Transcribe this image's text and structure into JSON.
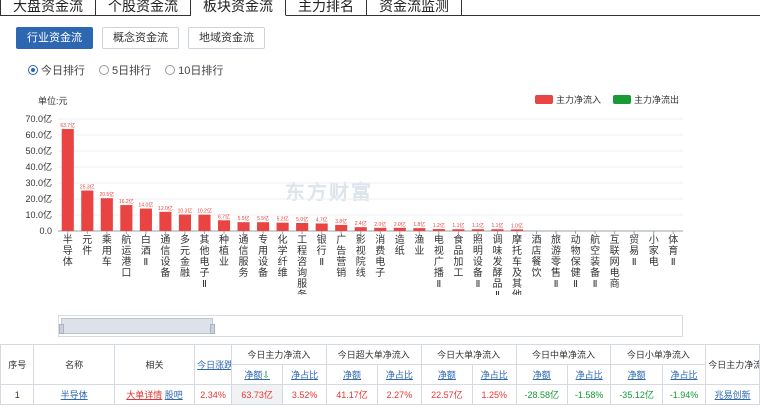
{
  "top_tabs": [
    "大盘资金流",
    "个股资金流",
    "板块资金流",
    "主力排名",
    "资金流监测"
  ],
  "top_tabs_active": 2,
  "sub_tabs": [
    "行业资金流",
    "概念资金流",
    "地域资金流"
  ],
  "sub_tabs_active": 0,
  "rank_options": [
    "今日排行",
    "5日排行",
    "10日排行"
  ],
  "rank_selected": 0,
  "unit_label": "单位:元",
  "legend": {
    "inflow": "主力净流入",
    "outflow": "主力净流出"
  },
  "colors": {
    "inflow": "#e94442",
    "outflow": "#1a9a35",
    "accent": "#2d67b1"
  },
  "watermark": "东方财富",
  "chart_data": {
    "type": "bar",
    "ylim": [
      0,
      70
    ],
    "yticks": [
      "0.0",
      "10.0亿",
      "20.0亿",
      "30.0亿",
      "40.0亿",
      "50.0亿",
      "60.0亿",
      "70.0亿"
    ],
    "categories": [
      "半导体",
      "元件",
      "乘用车",
      "航运港口",
      "白酒Ⅱ",
      "通信设备",
      "多元金融",
      "其他电子Ⅱ",
      "种植业",
      "通信服务",
      "专用设备",
      "化学纤维",
      "工程咨询服务Ⅱ",
      "银行Ⅱ",
      "广告营销",
      "影视院线",
      "消费电子",
      "造纸",
      "渔业",
      "电视广播Ⅱ",
      "食品加工",
      "照明设备Ⅱ",
      "调味发酵品Ⅱ",
      "摩托车及其他",
      "酒店餐饮",
      "旅游零售Ⅱ",
      "动物保健Ⅱ",
      "航空装备Ⅱ",
      "互联网电商",
      "贸易Ⅱ",
      "小家电",
      "体育Ⅱ"
    ],
    "values": [
      63.73,
      25.3,
      20.5,
      16.2,
      14.0,
      12.0,
      10.3,
      10.2,
      6.7,
      5.5,
      5.5,
      5.2,
      5.0,
      4.7,
      3.8,
      2.4,
      2.0,
      2.0,
      1.8,
      1.2,
      1.1,
      1.1,
      1.1,
      1.0,
      0,
      0,
      0,
      0,
      0,
      0,
      0,
      0
    ],
    "value_labels": [
      "63.7亿",
      "25.3亿",
      "20.5亿",
      "16.2亿",
      "14.0亿",
      "12.0亿",
      "10.3亿",
      "10.2亿",
      "6.7亿",
      "5.5亿",
      "5.5亿",
      "5.2亿",
      "5.0亿",
      "4.7亿",
      "3.8亿",
      "2.4亿",
      "2.0亿",
      "2.0亿",
      "1.8亿",
      "1.2亿",
      "1.1亿",
      "1.1亿",
      "1.1亿",
      "1.0亿",
      "",
      "",
      "",
      "",
      "",
      "",
      "",
      ""
    ]
  },
  "table": {
    "group_headers": [
      "今日主力净流入",
      "今日超大单净流入",
      "今日大单净流入",
      "今日中单净流入",
      "今日小单净流入",
      "今日主力净流入最大股"
    ],
    "headers": {
      "index": "序号",
      "name": "名称",
      "related": "相关",
      "change": "今日涨跌幅",
      "amount": "净额",
      "ratio": "净占比"
    },
    "rows": [
      {
        "index": "1",
        "name": "半导体",
        "related_1": "大单详情",
        "related_2": "股吧",
        "change": "2.34%",
        "main_amount": "63.73亿",
        "main_ratio": "3.52%",
        "super_amount": "41.17亿",
        "super_ratio": "2.27%",
        "large_amount": "22.57亿",
        "large_ratio": "1.25%",
        "mid_amount": "-28.58亿",
        "mid_ratio": "-1.58%",
        "small_amount": "-35.12亿",
        "small_ratio": "-1.94%",
        "top_stock": "兆易创新"
      }
    ]
  }
}
